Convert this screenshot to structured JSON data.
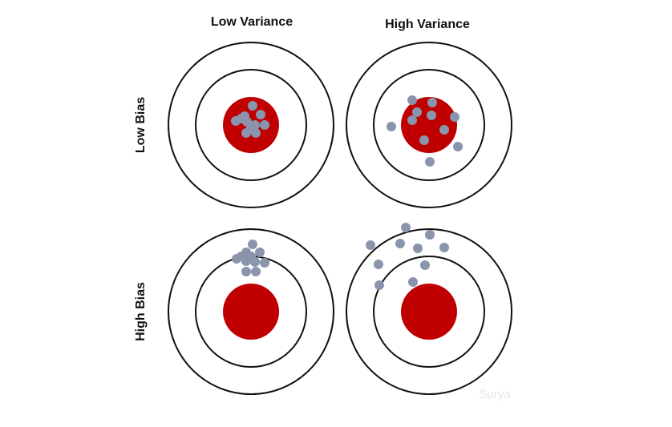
{
  "columns": {
    "low_variance": "Low Variance",
    "high_variance": "High Variance"
  },
  "rows": {
    "low_bias": "Low Bias",
    "high_bias": "High Bias"
  },
  "watermark": "Surya",
  "colors": {
    "bullseye": "#c00000",
    "shot": "#8a95ad",
    "ring": "#111111"
  },
  "targets": [
    {
      "name": "low-bias-low-variance",
      "bias": "Low Bias",
      "variance": "Low Variance",
      "shot_count": 11
    },
    {
      "name": "low-bias-high-variance",
      "bias": "Low Bias",
      "variance": "High Variance",
      "shot_count": 11
    },
    {
      "name": "high-bias-low-variance",
      "bias": "High Bias",
      "variance": "Low Variance",
      "shot_count": 11
    },
    {
      "name": "high-bias-high-variance",
      "bias": "High Bias",
      "variance": "High Variance",
      "shot_count": 11
    }
  ]
}
